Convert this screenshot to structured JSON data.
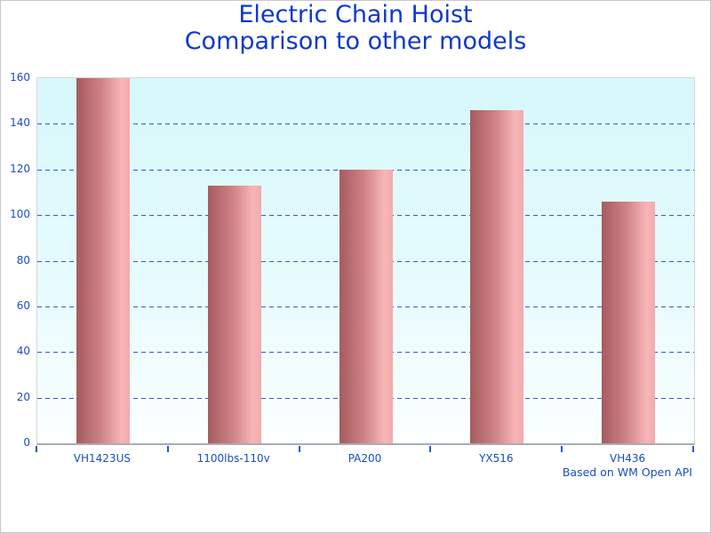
{
  "title": {
    "line1": "Electric Chain Hoist",
    "line2": "Comparison to other models"
  },
  "footnote": "Based on WM Open API",
  "colors": {
    "title_text": "#0d38cf",
    "axis_text": "#1a4dc2",
    "gridline": "#3060c8",
    "tick_mark": "#2b5cc8",
    "axis_line": "#a8adb3",
    "plot_bg_top": "#d7f8fc",
    "plot_bg_bottom": "#fcffff",
    "bar_gradient_dark": "#a65b5f",
    "bar_gradient_mid": "#cd8184",
    "bar_gradient_light": "#f9b6b7",
    "page_border": "#c9c9c9"
  },
  "chart_data": {
    "type": "bar",
    "title": "Electric Chain Hoist — Comparison to other models",
    "categories": [
      "VH1423US",
      "1100lbs-110v",
      "PA200",
      "YX516",
      "VH436"
    ],
    "values": [
      160,
      113,
      120,
      146,
      106
    ],
    "xlabel": "",
    "ylabel": "",
    "ylim": [
      0,
      160
    ],
    "yticks": [
      0,
      20,
      40,
      60,
      80,
      100,
      120,
      140,
      160
    ],
    "grid": "horizontal-dashed",
    "legend": "none",
    "annotation": "Based on WM Open API",
    "bar_style": "horizontal red-to-pink gradient, width 60px"
  }
}
